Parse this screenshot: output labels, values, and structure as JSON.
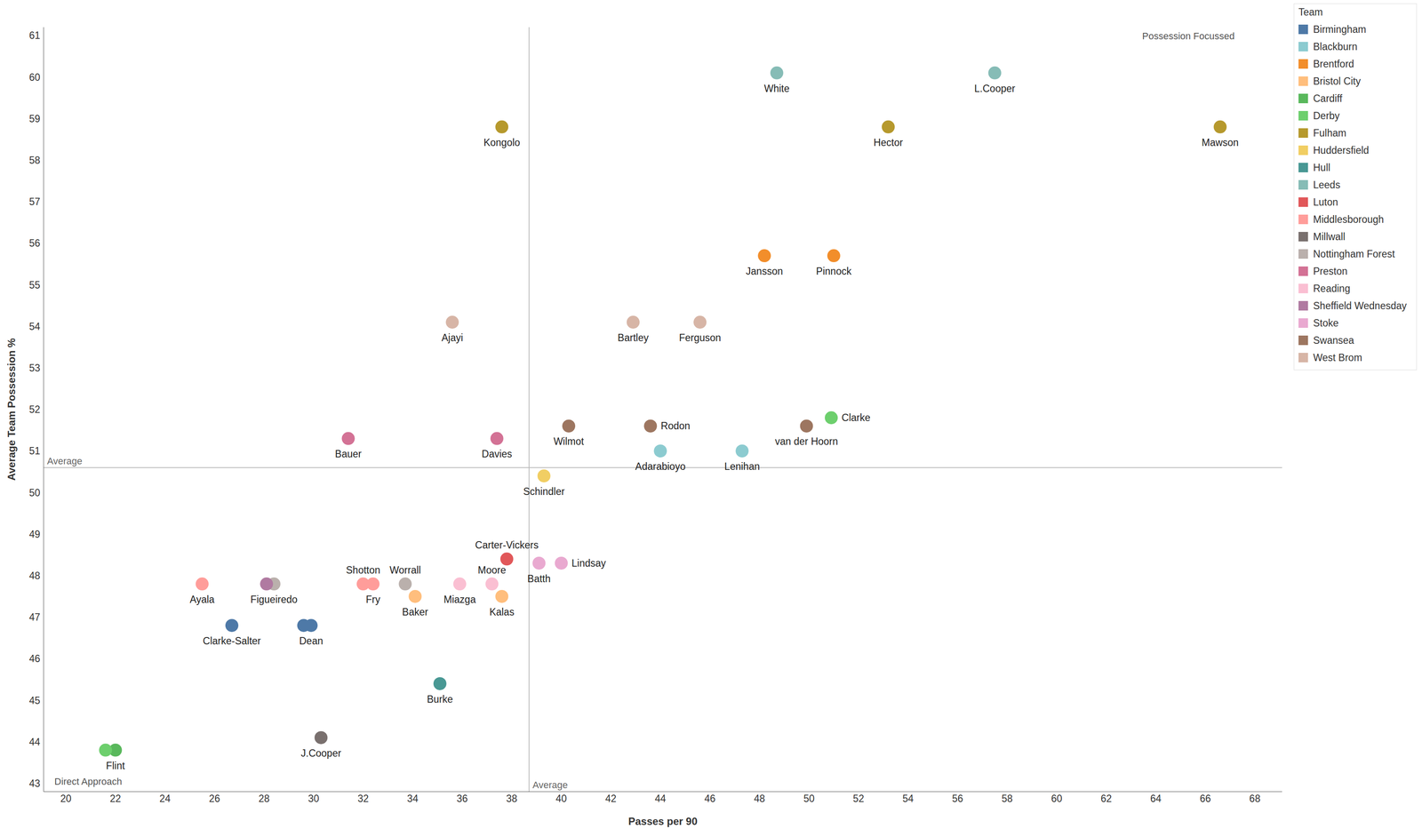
{
  "chart_data": {
    "type": "scatter",
    "x_label": "Passes per 90",
    "y_label": "Average Team Possession %",
    "legend_title": "Team",
    "legend": "top right",
    "grid": false,
    "xlim": [
      19.1,
      69.1
    ],
    "xticks": [
      20,
      22,
      24,
      26,
      28,
      30,
      32,
      34,
      36,
      38,
      40,
      42,
      44,
      46,
      48,
      50,
      52,
      54,
      56,
      58,
      60,
      62,
      64,
      66,
      68
    ],
    "ylim": [
      42.8,
      61.2
    ],
    "yticks": [
      43,
      44,
      45,
      46,
      47,
      48,
      49,
      50,
      51,
      52,
      53,
      54,
      55,
      56,
      57,
      58,
      59,
      60,
      61
    ],
    "reference_lines": [
      {
        "axis": "x",
        "value": 38.7,
        "label": "Average"
      },
      {
        "axis": "y",
        "value": 50.6,
        "label": "Average"
      }
    ],
    "annotations": [
      {
        "text": "Possession Focussed",
        "position": "top right"
      },
      {
        "text": "Direct Approach",
        "position": "bottom left"
      }
    ],
    "series": [
      {
        "name": "Birmingham",
        "color": "#4e79a7",
        "x": [
          26.7,
          29.6,
          29.9
        ],
        "y": [
          46.8,
          46.8,
          46.8
        ],
        "labels": [
          "Clarke-Salter",
          null,
          "Dean"
        ]
      },
      {
        "name": "Blackburn",
        "color": "#8ccbd0",
        "x": [
          44.0,
          47.3
        ],
        "y": [
          51.0,
          51.0
        ],
        "labels": [
          "Adarabioyo",
          "Lenihan"
        ]
      },
      {
        "name": "Brentford",
        "color": "#f28e2b",
        "x": [
          48.2,
          51.0
        ],
        "y": [
          55.7,
          55.7
        ],
        "labels": [
          "Jansson",
          "Pinnock"
        ]
      },
      {
        "name": "Bristol City",
        "color": "#ffbe7d",
        "x": [
          34.1,
          37.6
        ],
        "y": [
          47.5,
          47.5
        ],
        "labels": [
          "Baker",
          "Kalas"
        ]
      },
      {
        "name": "Cardiff",
        "color": "#59b85c",
        "x": [
          22.0
        ],
        "y": [
          43.8
        ],
        "labels": [
          "Flint"
        ]
      },
      {
        "name": "Derby",
        "color": "#6dcf6d",
        "x": [
          21.6,
          50.9
        ],
        "y": [
          43.8,
          51.8
        ],
        "labels": [
          null,
          "Clarke"
        ]
      },
      {
        "name": "Fulham",
        "color": "#b6992d",
        "x": [
          37.6,
          53.2,
          66.6
        ],
        "y": [
          58.8,
          58.8,
          58.8
        ],
        "labels": [
          "Kongolo",
          "Hector",
          "Mawson"
        ]
      },
      {
        "name": "Huddersfield",
        "color": "#f1ce63",
        "x": [
          39.3
        ],
        "y": [
          50.4
        ],
        "labels": [
          "Schindler"
        ]
      },
      {
        "name": "Hull",
        "color": "#499894",
        "x": [
          35.1
        ],
        "y": [
          45.4
        ],
        "labels": [
          "Burke"
        ]
      },
      {
        "name": "Leeds",
        "color": "#86bcb6",
        "x": [
          48.7,
          57.5
        ],
        "y": [
          60.1,
          60.1
        ],
        "labels": [
          "White",
          "L.Cooper"
        ]
      },
      {
        "name": "Luton",
        "color": "#e15759",
        "x": [
          37.8
        ],
        "y": [
          48.4
        ],
        "labels": [
          "Carter-Vickers"
        ]
      },
      {
        "name": "Middlesborough",
        "color": "#ff9d9a",
        "x": [
          25.5,
          32.0,
          32.4
        ],
        "y": [
          47.8,
          47.8,
          47.8
        ],
        "labels": [
          "Ayala",
          "Shotton",
          "Fry"
        ]
      },
      {
        "name": "Millwall",
        "color": "#79706e",
        "x": [
          30.3
        ],
        "y": [
          44.1
        ],
        "labels": [
          "J.Cooper"
        ]
      },
      {
        "name": "Nottingham Forest",
        "color": "#bab0ac",
        "x": [
          28.4,
          33.7
        ],
        "y": [
          47.8,
          47.8
        ],
        "labels": [
          "Figueiredo",
          "Worrall"
        ]
      },
      {
        "name": "Preston",
        "color": "#d37295",
        "x": [
          31.4,
          37.4
        ],
        "y": [
          51.3,
          51.3
        ],
        "labels": [
          "Bauer",
          "Davies"
        ]
      },
      {
        "name": "Reading",
        "color": "#fabfd2",
        "x": [
          35.9,
          37.2
        ],
        "y": [
          47.8,
          47.8
        ],
        "labels": [
          "Miazga",
          "Moore"
        ]
      },
      {
        "name": "Sheffield Wednesday",
        "color": "#b07aa1",
        "x": [
          28.1
        ],
        "y": [
          47.8
        ],
        "labels": [
          null
        ]
      },
      {
        "name": "Stoke",
        "color": "#e9a9d0",
        "x": [
          39.1,
          40.0
        ],
        "y": [
          48.3,
          48.3
        ],
        "labels": [
          "Batth",
          "Lindsay"
        ]
      },
      {
        "name": "Swansea",
        "color": "#9d7660",
        "x": [
          40.3,
          43.6,
          49.9
        ],
        "y": [
          51.6,
          51.6,
          51.6
        ],
        "labels": [
          "Wilmot",
          "Rodon",
          "van der Hoorn"
        ]
      },
      {
        "name": "West Brom",
        "color": "#d7b5a6",
        "x": [
          35.6,
          42.9,
          45.6
        ],
        "y": [
          54.1,
          54.1,
          54.1
        ],
        "labels": [
          "Ajayi",
          "Bartley",
          "Ferguson"
        ]
      }
    ]
  }
}
